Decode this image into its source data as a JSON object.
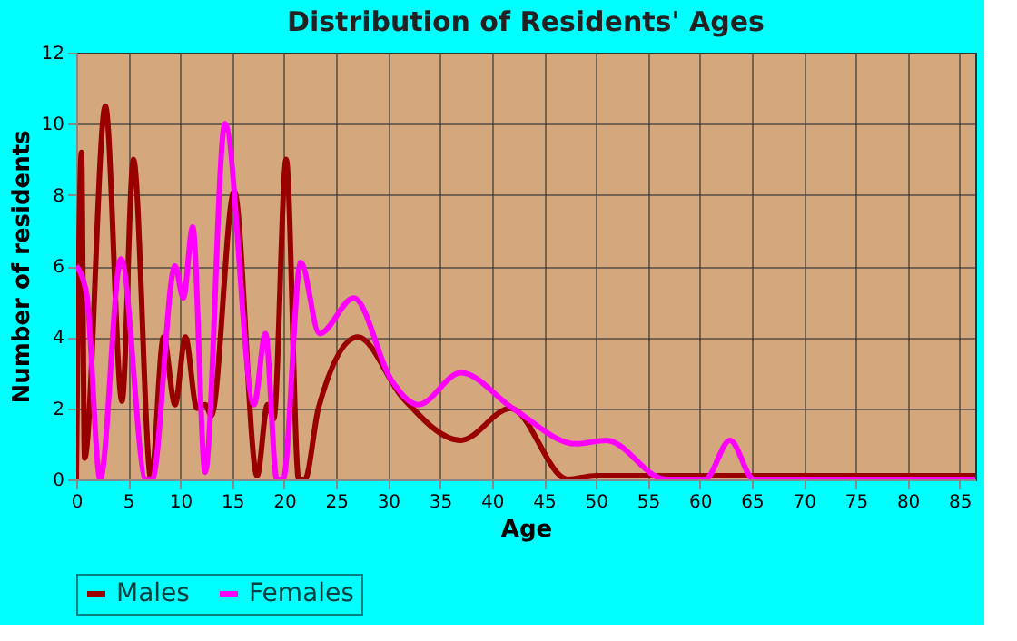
{
  "chart_data": {
    "type": "line",
    "title": "Distribution of Residents' Ages",
    "xlabel": "Age",
    "ylabel": "Number of residents",
    "xlim": [
      0,
      86.5
    ],
    "xticks": [
      0,
      5,
      10,
      15,
      20,
      25,
      30,
      35,
      40,
      45,
      50,
      55,
      60,
      65,
      70,
      75,
      80,
      85
    ],
    "ylim": [
      0,
      12
    ],
    "yticks": [
      0,
      2,
      4,
      6,
      8,
      10,
      12
    ],
    "grid": true,
    "legend": "bottom",
    "marker": "none",
    "line_style": "solid",
    "series": [
      {
        "name": "Males",
        "color": "#990000",
        "x": [
          0,
          0.5,
          0.8,
          2.8,
          4.4,
          5.5,
          7.2,
          8.4,
          9.5,
          10.5,
          11.6,
          12.4,
          13,
          15.2,
          17.4,
          18.4,
          19,
          20.2,
          21.4,
          22,
          23.3,
          27.1,
          31.4,
          37,
          41.8,
          47.3,
          50,
          60,
          70,
          80,
          86.5
        ],
        "values": [
          0,
          9.2,
          0.6,
          10.5,
          2.2,
          9,
          0,
          4,
          2.1,
          4,
          2,
          2.1,
          1.8,
          8.1,
          0.1,
          2.1,
          1.7,
          9,
          0,
          0,
          2,
          4,
          2.3,
          1.1,
          2,
          0,
          0.1,
          0.1,
          0.1,
          0.1,
          0.1
        ]
      },
      {
        "name": "Females",
        "color": "#ff00ff",
        "x": [
          0,
          1,
          2.3,
          4.3,
          6.7,
          7.3,
          9.5,
          10.3,
          11.2,
          12.4,
          14.3,
          17.1,
          18.2,
          19.3,
          19.9,
          21.6,
          23.4,
          26.7,
          30.3,
          32.9,
          37,
          42,
          48.1,
          51,
          56.7,
          60.5,
          62.9,
          65.2,
          75,
          86.5
        ],
        "values": [
          6,
          5.2,
          0,
          6.2,
          0,
          0,
          6,
          5.1,
          7.1,
          0.2,
          10,
          2.1,
          4.1,
          0,
          0,
          6.1,
          4.1,
          5.1,
          2.8,
          2.1,
          3,
          2,
          1,
          1.1,
          0,
          0,
          1.1,
          0,
          0,
          0
        ]
      }
    ]
  }
}
